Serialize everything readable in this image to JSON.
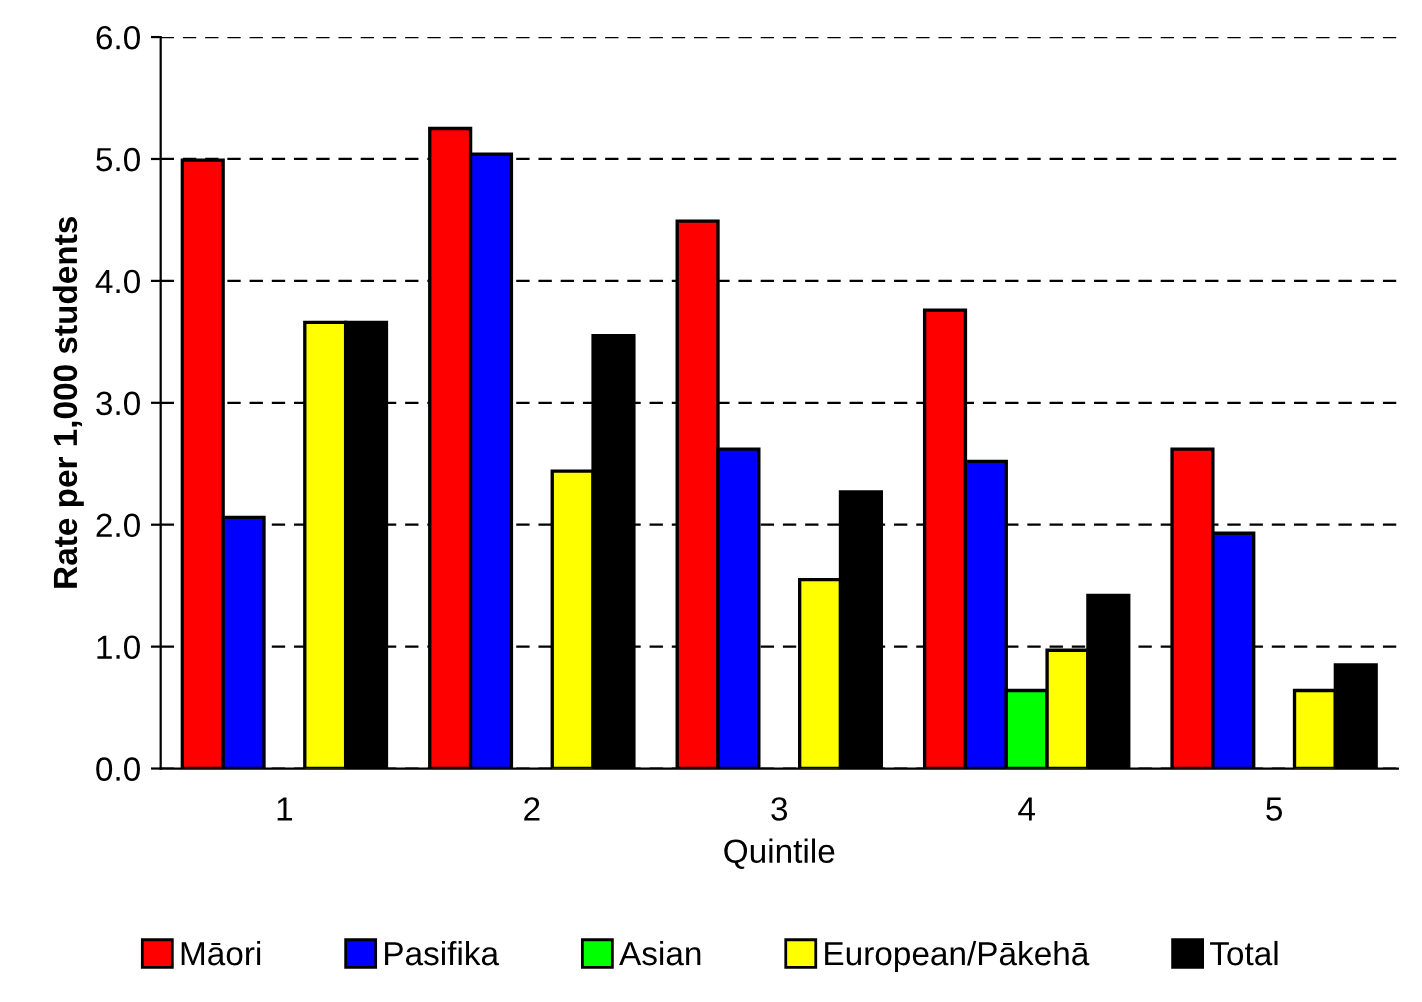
{
  "chart_data": {
    "type": "bar",
    "xlabel": "Quintile",
    "ylabel": "Rate per 1,000 students",
    "categories": [
      "1",
      "2",
      "3",
      "4",
      "5"
    ],
    "series": [
      {
        "name": "Māori",
        "color": "#ff0000",
        "values": [
          4.99,
          5.25,
          4.49,
          3.76,
          2.62
        ]
      },
      {
        "name": "Pasifika",
        "color": "#0000ff",
        "values": [
          2.06,
          5.04,
          2.62,
          2.52,
          1.93
        ]
      },
      {
        "name": "Asian",
        "color": "#00ff00",
        "values": [
          null,
          null,
          null,
          0.64,
          null
        ]
      },
      {
        "name": "European/Pākehā",
        "color": "#ffff00",
        "values": [
          3.66,
          2.44,
          1.55,
          0.97,
          0.64
        ]
      },
      {
        "name": "Total",
        "color": "#000000",
        "values": [
          3.66,
          3.55,
          2.27,
          1.42,
          0.85
        ]
      }
    ],
    "ylim": [
      0,
      6
    ],
    "yticks": [
      {
        "value": 0,
        "label": "0.0"
      },
      {
        "value": 1,
        "label": "1.0"
      },
      {
        "value": 2,
        "label": "2.0"
      },
      {
        "value": 3,
        "label": "3.0"
      },
      {
        "value": 4,
        "label": "4.0"
      },
      {
        "value": 5,
        "label": "5.0"
      },
      {
        "value": 6,
        "label": "6.0"
      }
    ],
    "grid": "y",
    "legend": "bottom"
  }
}
